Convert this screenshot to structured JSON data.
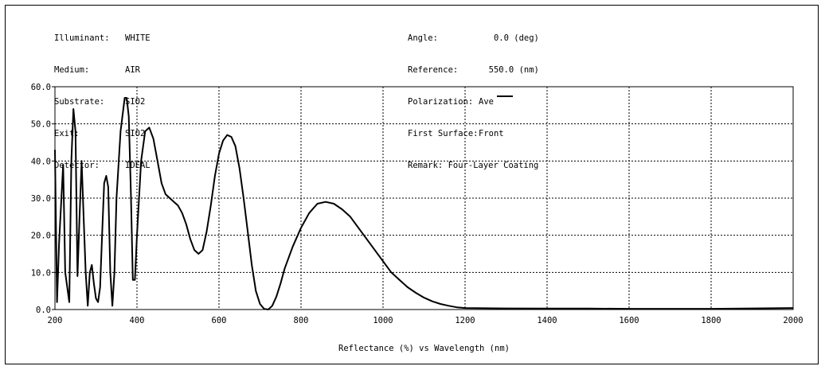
{
  "header": {
    "left": [
      {
        "key": "Illuminant:",
        "value": "WHITE"
      },
      {
        "key": "Medium:",
        "value": "AIR"
      },
      {
        "key": "Substrate:",
        "value": "SIO2"
      },
      {
        "key": "Exit:",
        "value": "SIO2"
      },
      {
        "key": "Detector:",
        "value": "IDEAL"
      }
    ],
    "right": [
      {
        "key": "Angle:",
        "value": "   0.0 (deg)"
      },
      {
        "key": "Reference:",
        "value": "  550.0 (nm)"
      },
      {
        "key": "Polarization:",
        "value": "Ave"
      },
      {
        "key": "First Surface:",
        "value": "Front"
      },
      {
        "key": "Remark:",
        "value": " Four-Layer Coating"
      }
    ]
  },
  "chart_data": {
    "type": "line",
    "xlabel": "Reflectance (%)  vs  Wavelength (nm)",
    "xlim": [
      200,
      2000
    ],
    "ylim": [
      0,
      60
    ],
    "xticks": [
      "200",
      "400",
      "600",
      "800",
      "1000",
      "1200",
      "1400",
      "1600",
      "1800",
      "2000"
    ],
    "yticks": [
      "0.0",
      "10.0",
      "20.0",
      "30.0",
      "40.0",
      "50.0",
      "60.0"
    ],
    "grid": true,
    "series": [
      {
        "color": "#000000",
        "points": [
          [
            200,
            43
          ],
          [
            205,
            2
          ],
          [
            210,
            18
          ],
          [
            220,
            39
          ],
          [
            225,
            10
          ],
          [
            235,
            2
          ],
          [
            240,
            40
          ],
          [
            245,
            54
          ],
          [
            250,
            48
          ],
          [
            255,
            9
          ],
          [
            260,
            25
          ],
          [
            265,
            40
          ],
          [
            270,
            25
          ],
          [
            275,
            10
          ],
          [
            280,
            1
          ],
          [
            285,
            10
          ],
          [
            290,
            12
          ],
          [
            295,
            7
          ],
          [
            300,
            3
          ],
          [
            305,
            2
          ],
          [
            310,
            6
          ],
          [
            315,
            20
          ],
          [
            320,
            34
          ],
          [
            325,
            36
          ],
          [
            330,
            33
          ],
          [
            335,
            10
          ],
          [
            340,
            1
          ],
          [
            345,
            10
          ],
          [
            350,
            30
          ],
          [
            360,
            48
          ],
          [
            370,
            57
          ],
          [
            375,
            57
          ],
          [
            380,
            52
          ],
          [
            385,
            32
          ],
          [
            390,
            8
          ],
          [
            395,
            8
          ],
          [
            400,
            20
          ],
          [
            410,
            40
          ],
          [
            420,
            48
          ],
          [
            430,
            49
          ],
          [
            440,
            46
          ],
          [
            450,
            40
          ],
          [
            460,
            34
          ],
          [
            470,
            31
          ],
          [
            480,
            30
          ],
          [
            490,
            29
          ],
          [
            500,
            28
          ],
          [
            510,
            26
          ],
          [
            520,
            23
          ],
          [
            530,
            19
          ],
          [
            540,
            16
          ],
          [
            550,
            15
          ],
          [
            560,
            16
          ],
          [
            570,
            21
          ],
          [
            580,
            28
          ],
          [
            590,
            36
          ],
          [
            600,
            42
          ],
          [
            610,
            45.5
          ],
          [
            620,
            47
          ],
          [
            630,
            46.5
          ],
          [
            640,
            44
          ],
          [
            650,
            38
          ],
          [
            660,
            30
          ],
          [
            670,
            21
          ],
          [
            680,
            12
          ],
          [
            690,
            5
          ],
          [
            700,
            1.5
          ],
          [
            710,
            0.2
          ],
          [
            720,
            0
          ],
          [
            730,
            1
          ],
          [
            740,
            3.5
          ],
          [
            750,
            7
          ],
          [
            760,
            11
          ],
          [
            780,
            17
          ],
          [
            800,
            22
          ],
          [
            820,
            26
          ],
          [
            840,
            28.5
          ],
          [
            860,
            29
          ],
          [
            880,
            28.5
          ],
          [
            900,
            27
          ],
          [
            920,
            25
          ],
          [
            940,
            22
          ],
          [
            960,
            19
          ],
          [
            980,
            16
          ],
          [
            1000,
            13
          ],
          [
            1020,
            10
          ],
          [
            1040,
            8
          ],
          [
            1060,
            6
          ],
          [
            1080,
            4.5
          ],
          [
            1100,
            3.2
          ],
          [
            1120,
            2.2
          ],
          [
            1140,
            1.5
          ],
          [
            1160,
            1
          ],
          [
            1180,
            0.6
          ],
          [
            1200,
            0.4
          ],
          [
            1300,
            0.3
          ],
          [
            1400,
            0.25
          ],
          [
            1500,
            0.25
          ],
          [
            1600,
            0.2
          ],
          [
            1700,
            0.2
          ],
          [
            1800,
            0.2
          ],
          [
            1900,
            0.3
          ],
          [
            2000,
            0.4
          ]
        ]
      }
    ]
  }
}
